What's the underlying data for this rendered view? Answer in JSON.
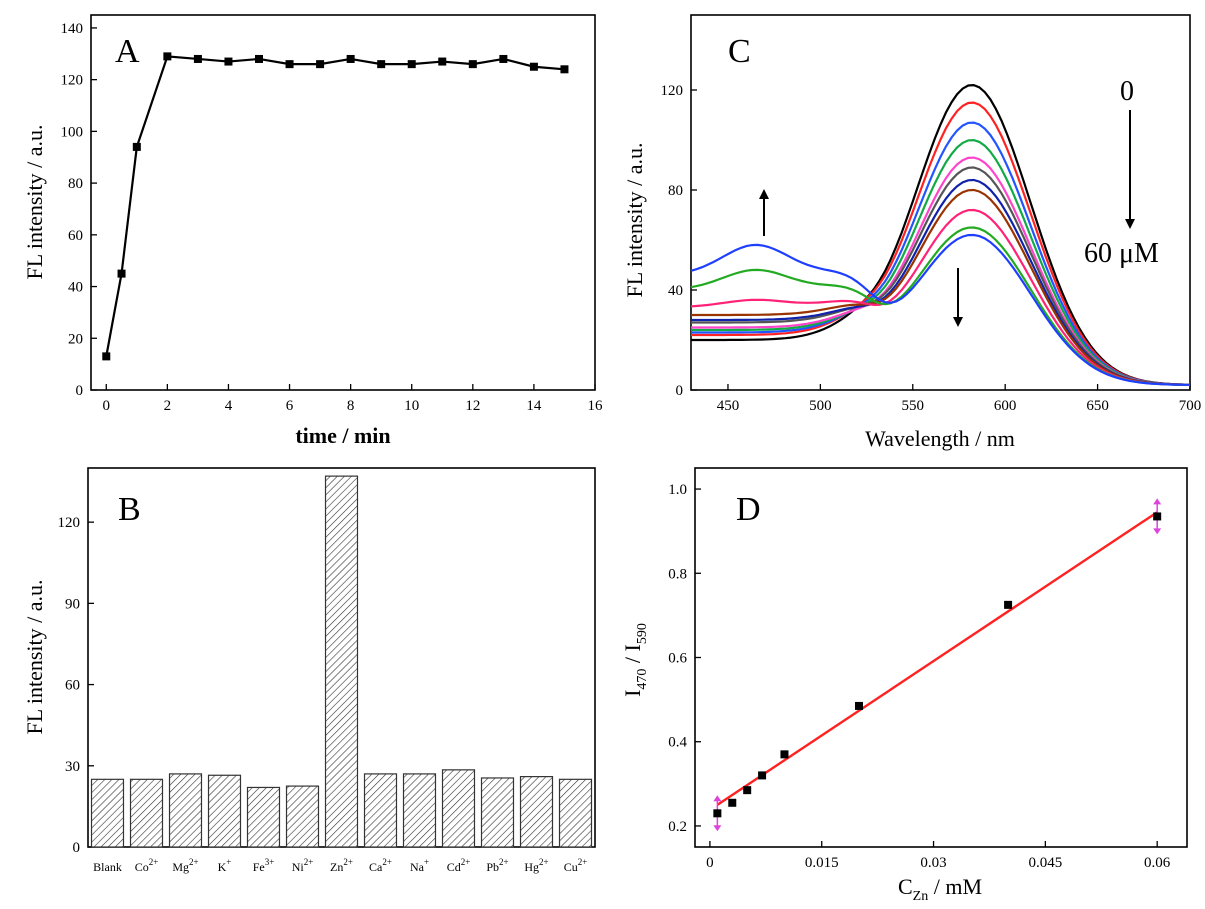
{
  "chart_data": [
    {
      "panel": "A",
      "type": "line",
      "ylabel": "FL intensity / a.u.",
      "xlabel": "time / min",
      "xlim": [
        -0.5,
        16
      ],
      "ylim": [
        0,
        145
      ],
      "xticks": [
        0,
        2,
        4,
        6,
        8,
        10,
        12,
        14,
        16
      ],
      "yticks": [
        0,
        20,
        40,
        60,
        80,
        100,
        120,
        140
      ],
      "x": [
        0,
        0.5,
        1,
        2,
        3,
        4,
        5,
        6,
        7,
        8,
        9,
        10,
        11,
        12,
        13,
        14,
        15
      ],
      "y": [
        13,
        45,
        94,
        129,
        128,
        127,
        128,
        126,
        126,
        128,
        126,
        126,
        127,
        126,
        128,
        125,
        124
      ]
    },
    {
      "panel": "B",
      "type": "bar",
      "ylabel": "FL intensity / a.u.",
      "ylim": [
        0,
        140
      ],
      "yticks": [
        0,
        30,
        60,
        90,
        120
      ],
      "categories": [
        "Blank",
        "Co2+",
        "Mg2+",
        "K+",
        "Fe3+",
        "Ni2+",
        "Zn2+",
        "Ca2+",
        "Na+",
        "Cd2+",
        "Pb2+",
        "Hg2+",
        "Cu2+"
      ],
      "category_labels": [
        {
          "base": "Blank",
          "sup": ""
        },
        {
          "base": "Co",
          "sup": "2+"
        },
        {
          "base": "Mg",
          "sup": "2+"
        },
        {
          "base": "K",
          "sup": "+"
        },
        {
          "base": "Fe",
          "sup": "3+"
        },
        {
          "base": "Ni",
          "sup": "2+"
        },
        {
          "base": "Zn",
          "sup": "2+"
        },
        {
          "base": "Ca",
          "sup": "2+"
        },
        {
          "base": "Na",
          "sup": "+"
        },
        {
          "base": "Cd",
          "sup": "2+"
        },
        {
          "base": "Pb",
          "sup": "2+"
        },
        {
          "base": "Hg",
          "sup": "2+"
        },
        {
          "base": "Cu",
          "sup": "2+"
        }
      ],
      "values": [
        25,
        25,
        27,
        26.5,
        22,
        22.5,
        137,
        27,
        27,
        28.5,
        25.5,
        26,
        25
      ]
    },
    {
      "panel": "C",
      "type": "line",
      "ylabel": "FL intensity / a.u.",
      "xlabel": "Wavelength / nm",
      "xlim": [
        430,
        700
      ],
      "ylim": [
        0,
        150
      ],
      "xticks": [
        450,
        500,
        550,
        600,
        650,
        700
      ],
      "yticks": [
        0,
        40,
        80,
        120
      ],
      "annotation_top": "0",
      "annotation_bottom": "60 μM",
      "series": [
        {
          "color": "#000000",
          "peak": 120,
          "base": 18
        },
        {
          "color": "#ff2222",
          "peak": 113,
          "base": 20
        },
        {
          "color": "#2255ff",
          "peak": 105,
          "base": 21
        },
        {
          "color": "#11aa44",
          "peak": 98,
          "base": 22
        },
        {
          "color": "#ff44cc",
          "peak": 91,
          "base": 23
        },
        {
          "color": "#555555",
          "peak": 87,
          "base": 25
        },
        {
          "color": "#1122aa",
          "peak": 82,
          "base": 26
        },
        {
          "color": "#993300",
          "peak": 78,
          "base": 28
        },
        {
          "color": "#ff2277",
          "peak": 70,
          "base": 31
        },
        {
          "color": "#22aa22",
          "peak": 63,
          "base": 38
        },
        {
          "color": "#1f3fff",
          "peak": 60,
          "base": 44
        }
      ],
      "short_wave_hump": [
        0,
        0,
        0,
        0,
        0,
        0,
        0,
        0,
        3,
        8,
        12
      ]
    },
    {
      "panel": "D",
      "type": "scatter",
      "ylabel": "I470 / I590",
      "xlabel": "CZn / mM",
      "xlim": [
        -0.002,
        0.064
      ],
      "ylim": [
        0.15,
        1.05
      ],
      "xticks": [
        0,
        0.015,
        0.03,
        0.045,
        0.06
      ],
      "xtick_labels": [
        "0",
        "0.015",
        "0.03",
        "0.045",
        "0.06"
      ],
      "yticks": [
        0.2,
        0.4,
        0.6,
        0.8,
        1.0
      ],
      "ytick_labels": [
        "0.2",
        "0.4",
        "0.6",
        "0.8",
        "1.0"
      ],
      "x": [
        0.001,
        0.003,
        0.005,
        0.007,
        0.01,
        0.02,
        0.04,
        0.06
      ],
      "y": [
        0.23,
        0.255,
        0.285,
        0.32,
        0.37,
        0.485,
        0.725,
        0.935
      ],
      "fit_line": {
        "x": [
          0.001,
          0.06
        ],
        "y": [
          0.25,
          0.945
        ],
        "color": "#ff2222"
      }
    }
  ],
  "panels": {
    "A": {
      "letter": "A",
      "ylabel": "FL intensity / a.u.",
      "xlabel": "time / min"
    },
    "B": {
      "letter": "B",
      "ylabel": "FL intensity / a.u."
    },
    "C": {
      "letter": "C",
      "ylabel": "FL intensity / a.u.",
      "xlabel": "Wavelength / nm",
      "annot_top": "0",
      "annot_bottom": "60 μM"
    },
    "D": {
      "letter": "D",
      "ylabel_main": "I",
      "ylabel_sub1": "470",
      "ylabel_mid": " / I",
      "ylabel_sub2": "590",
      "xlabel_main": "C",
      "xlabel_sub": "Zn",
      "xlabel_tail": " / mM"
    }
  }
}
